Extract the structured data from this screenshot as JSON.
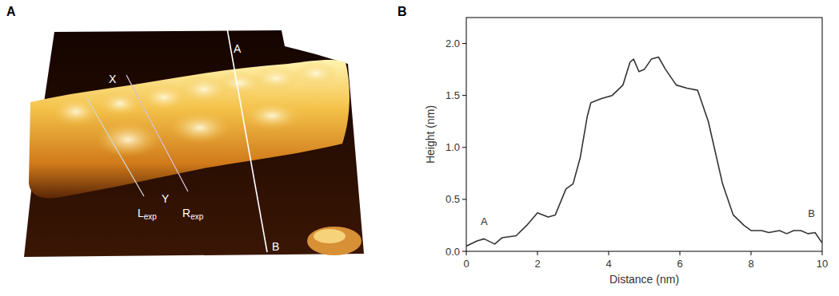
{
  "panel_a": {
    "panel_label": "A",
    "labels": {
      "x": "X",
      "y": "Y",
      "l_exp": {
        "base": "L",
        "sub": "exp"
      },
      "r_exp": {
        "base": "R",
        "sub": "exp"
      },
      "line_start": "A",
      "line_end": "B"
    }
  },
  "chart_data": {
    "type": "line",
    "panel_label": "B",
    "x_label": "Distance (nm)",
    "y_label": "Height (nm)",
    "x": [
      0,
      0.3,
      0.5,
      0.8,
      1.0,
      1.4,
      1.7,
      2.0,
      2.3,
      2.5,
      2.8,
      3.0,
      3.2,
      3.4,
      3.5,
      3.8,
      4.1,
      4.4,
      4.6,
      4.7,
      4.85,
      5.0,
      5.2,
      5.4,
      5.6,
      5.9,
      6.2,
      6.5,
      6.8,
      7.0,
      7.2,
      7.5,
      7.8,
      8.0,
      8.3,
      8.5,
      8.8,
      9.0,
      9.2,
      9.4,
      9.6,
      9.8,
      10.0
    ],
    "values": [
      0.05,
      0.1,
      0.12,
      0.07,
      0.13,
      0.15,
      0.25,
      0.37,
      0.33,
      0.35,
      0.6,
      0.65,
      0.9,
      1.3,
      1.43,
      1.47,
      1.5,
      1.6,
      1.82,
      1.85,
      1.73,
      1.75,
      1.85,
      1.87,
      1.75,
      1.6,
      1.57,
      1.55,
      1.25,
      0.95,
      0.65,
      0.35,
      0.25,
      0.2,
      0.2,
      0.18,
      0.2,
      0.17,
      0.2,
      0.2,
      0.17,
      0.18,
      0.08
    ],
    "color": "#333333",
    "xlim": [
      0,
      10
    ],
    "xticks": [
      0,
      2,
      4,
      6,
      8,
      10
    ],
    "ylim": [
      0,
      2.25
    ],
    "yticks": [
      {
        "value": 0,
        "label": "0.0"
      },
      {
        "value": 0.5,
        "label": "0.5"
      },
      {
        "value": 1,
        "label": "1.0"
      },
      {
        "value": 1.5,
        "label": "1.5"
      },
      {
        "value": 2,
        "label": "2.0"
      }
    ],
    "grid": false,
    "annotations": [
      {
        "text": "A",
        "x": 0.5,
        "y": 0.25
      },
      {
        "text": "B",
        "x": 9.7,
        "y": 0.33
      }
    ]
  }
}
